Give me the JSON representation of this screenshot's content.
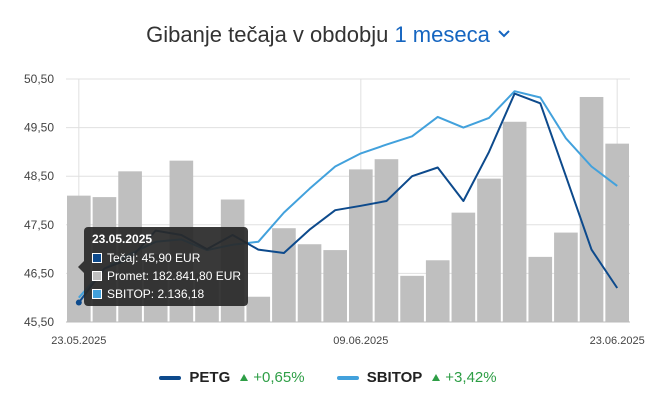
{
  "header": {
    "title": "Gibanje tečaja v obdobju",
    "period": "1 meseca",
    "period_icon": "chevron-down-icon"
  },
  "colors": {
    "petg": "#0d4a8c",
    "sbitop": "#42a1dc",
    "bars": "#bfbfbf",
    "grid": "#e0e0e0",
    "positive": "#2e9e46",
    "link": "#1565c0"
  },
  "legend": [
    {
      "name": "PETG",
      "change": "+0,65%"
    },
    {
      "name": "SBITOP",
      "change": "+3,42%"
    }
  ],
  "tooltip": {
    "date": "23.05.2025",
    "rows": [
      "Tečaj: 45,90 EUR",
      "Promet: 182.841,80 EUR",
      "SBITOP: 2.136,18"
    ]
  },
  "chart_data": {
    "type": "line",
    "y_ticks": [
      "50,50",
      "49,50",
      "48,50",
      "47,50",
      "46,50",
      "45,50"
    ],
    "x_tick_labels": [
      {
        "index": 0,
        "label": "23.05.2025"
      },
      {
        "index": 11,
        "label": "09.06.2025"
      },
      {
        "index": 21,
        "label": "23.06.2025"
      }
    ],
    "ylim": [
      45.5,
      50.5
    ],
    "grid": true,
    "legend_position": "bottom",
    "volume_bar_levels": [
      48.1,
      48.07,
      48.6,
      46.9,
      48.82,
      46.5,
      48.02,
      46.02,
      47.43,
      47.1,
      46.98,
      48.64,
      48.85,
      46.45,
      46.77,
      47.75,
      48.45,
      49.62,
      46.84,
      47.34,
      50.13,
      49.17
    ],
    "series": [
      {
        "name": "PETG",
        "values": [
          45.9,
          46.6,
          46.8,
          47.38,
          47.29,
          47.0,
          47.29,
          46.99,
          46.92,
          47.4,
          47.8,
          47.89,
          47.99,
          48.5,
          48.68,
          47.99,
          49.0,
          50.2,
          50.0,
          48.5,
          46.99,
          46.2
        ]
      },
      {
        "name": "SBITOP",
        "values": [
          46.0,
          46.6,
          46.9,
          47.15,
          47.2,
          46.98,
          47.09,
          47.15,
          47.75,
          48.24,
          48.7,
          48.97,
          49.15,
          49.32,
          49.72,
          49.5,
          49.7,
          50.25,
          50.12,
          49.28,
          48.7,
          48.3
        ]
      }
    ]
  }
}
